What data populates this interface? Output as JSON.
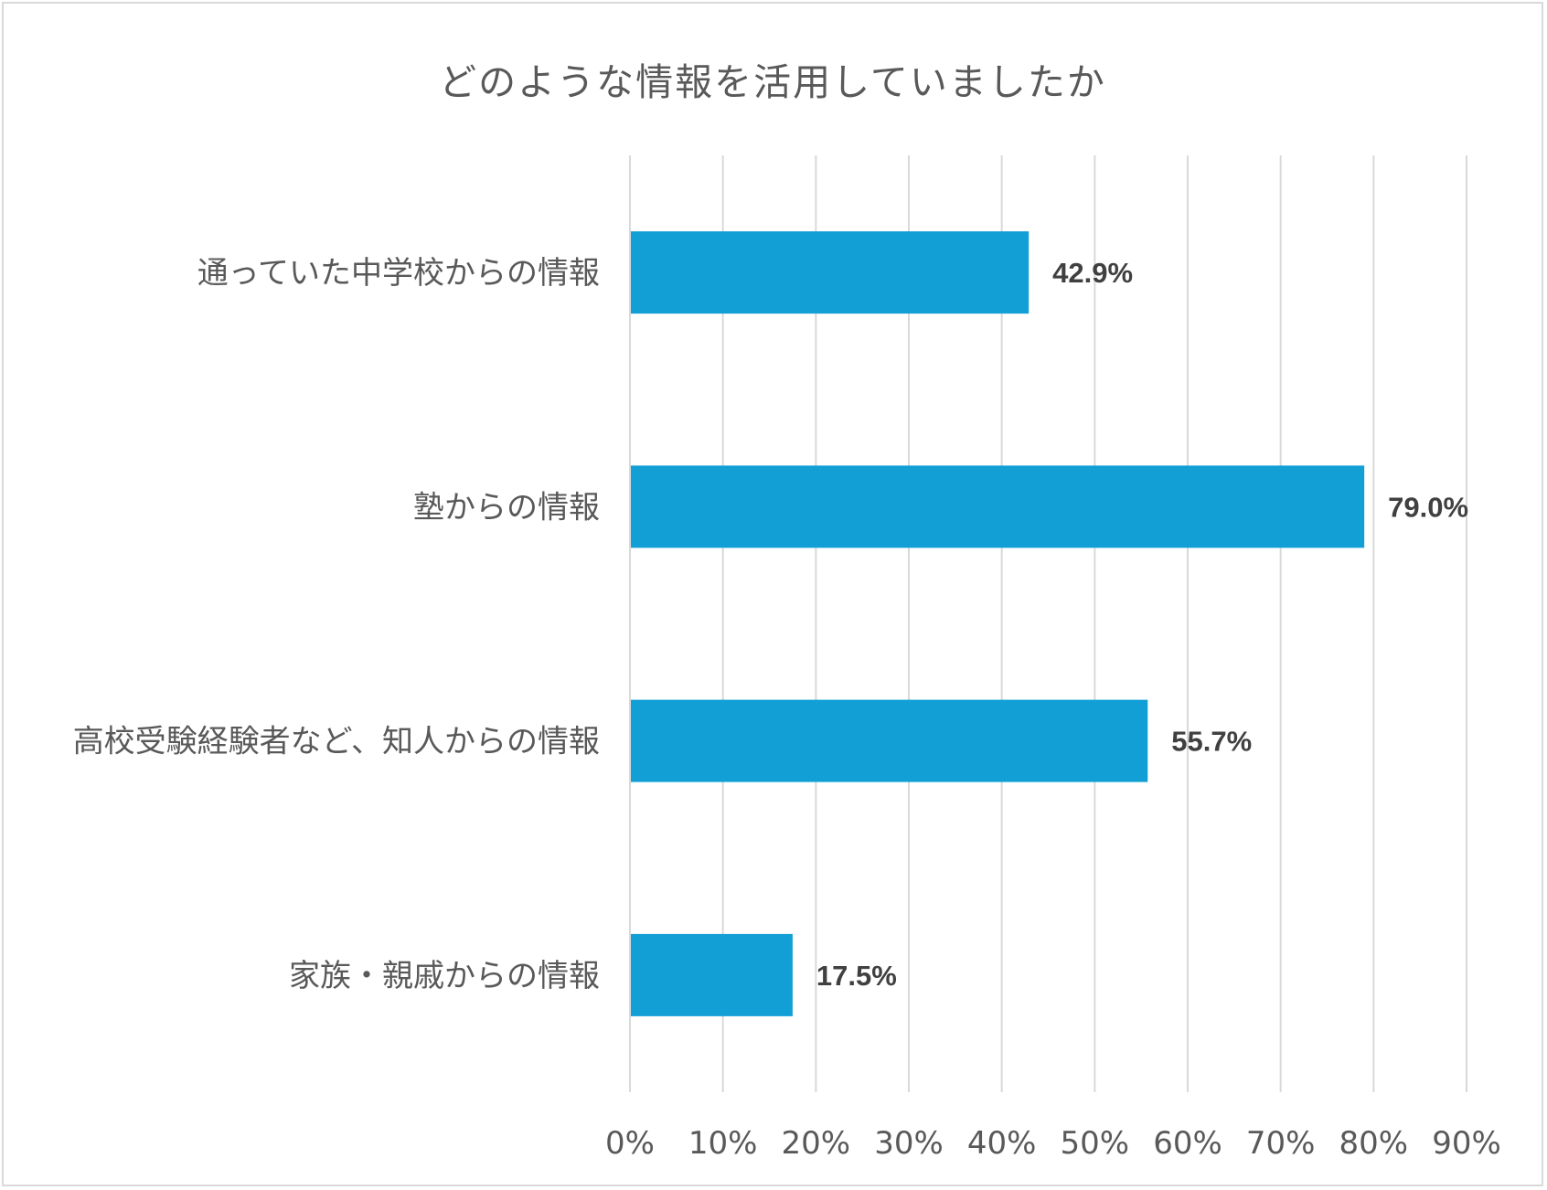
{
  "chart_data": {
    "type": "bar",
    "orientation": "horizontal",
    "title": "どのような情報を活用していましたか",
    "categories": [
      "通っていた中学校からの情報",
      "塾からの情報",
      "高校受験経験者など、知人からの情報",
      "家族・親戚からの情報"
    ],
    "values": [
      42.9,
      79.0,
      55.7,
      17.5
    ],
    "data_labels": [
      "42.9%",
      "79.0%",
      "55.7%",
      "17.5%"
    ],
    "xlabel": "",
    "ylabel": "",
    "xlim": [
      0,
      90
    ],
    "ticks": [
      "0%",
      "10%",
      "20%",
      "30%",
      "40%",
      "50%",
      "60%",
      "70%",
      "80%",
      "90%"
    ],
    "grid": "vertical",
    "legend": "none",
    "bar_color": "#119fd6",
    "grid_color": "#d9d9d9",
    "text_color": "#595959"
  }
}
